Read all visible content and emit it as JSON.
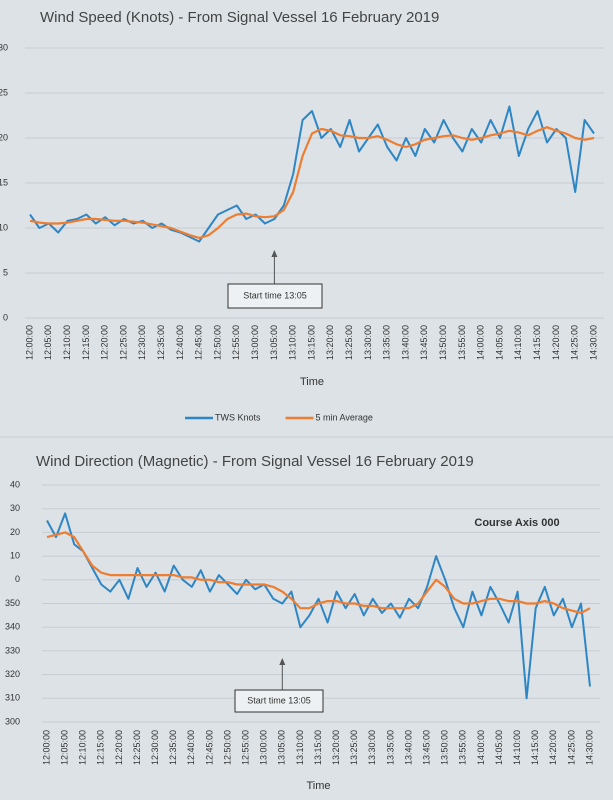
{
  "chart_data": [
    {
      "type": "line",
      "title": "Wind Speed (Knots) - From Signal Vessel 16 February 2019",
      "x_label": "Time",
      "categories": [
        "12:00:00",
        null,
        "12:05:00",
        null,
        "12:10:00",
        null,
        "12:15:00",
        null,
        "12:20:00",
        null,
        "12:25:00",
        null,
        "12:30:00",
        null,
        "12:35:00",
        null,
        "12:40:00",
        null,
        "12:45:00",
        null,
        "12:50:00",
        null,
        "12:55:00",
        null,
        "13:00:00",
        null,
        "13:05:00",
        null,
        "13:10:00",
        null,
        "13:15:00",
        null,
        "13:20:00",
        null,
        "13:25:00",
        null,
        "13:30:00",
        null,
        "13:35:00",
        null,
        "13:40:00",
        null,
        "13:45:00",
        null,
        "13:50:00",
        null,
        "13:55:00",
        null,
        "14:00:00",
        null,
        "14:05:00",
        null,
        "14:10:00",
        null,
        "14:15:00",
        null,
        "14:20:00",
        null,
        "14:25:00",
        null,
        "14:30:00"
      ],
      "series": [
        {
          "name": "TWS Knots",
          "color": "#2f86c4",
          "values": [
            11.5,
            10,
            10.5,
            9.5,
            10.8,
            11,
            11.5,
            10.5,
            11.2,
            10.3,
            11,
            10.5,
            10.8,
            10,
            10.5,
            9.8,
            9.5,
            9,
            8.5,
            10,
            11.5,
            12,
            12.5,
            11,
            11.5,
            10.5,
            11,
            12.5,
            16,
            22,
            23,
            20,
            21,
            19,
            22,
            18.5,
            20,
            21.5,
            19,
            17.5,
            20,
            18,
            21,
            19.5,
            22,
            20,
            18.5,
            21,
            19.5,
            22,
            20,
            23.5,
            18,
            21,
            23,
            19.5,
            21,
            20,
            14,
            22,
            20.5
          ]
        },
        {
          "name": "5 min Average",
          "color": "#ed7d31",
          "values": [
            10.8,
            10.6,
            10.5,
            10.5,
            10.6,
            10.8,
            11,
            11,
            10.9,
            10.8,
            10.8,
            10.7,
            10.6,
            10.4,
            10.2,
            10,
            9.6,
            9.2,
            8.9,
            9.2,
            10,
            11,
            11.5,
            11.6,
            11.3,
            11.2,
            11.3,
            12,
            14,
            18,
            20.5,
            21,
            20.8,
            20.3,
            20.2,
            20,
            20,
            20.2,
            19.8,
            19.3,
            19,
            19.3,
            19.8,
            20,
            20.2,
            20.3,
            20,
            19.8,
            20,
            20.3,
            20.5,
            20.8,
            20.6,
            20.3,
            20.8,
            21.2,
            20.8,
            20.5,
            20,
            19.8,
            20
          ]
        }
      ],
      "ylim": [
        0,
        30
      ],
      "yticks": [
        0,
        5,
        10,
        15,
        20,
        25,
        30
      ],
      "grid": true,
      "legend": "bottom",
      "annotations": [
        "Start time 13:05"
      ]
    },
    {
      "type": "line",
      "title": "Wind Direction (Magnetic) - From Signal Vessel 16 February 2019",
      "x_label": "Time",
      "categories": [
        "12:00:00",
        null,
        "12:05:00",
        null,
        "12:10:00",
        null,
        "12:15:00",
        null,
        "12:20:00",
        null,
        "12:25:00",
        null,
        "12:30:00",
        null,
        "12:35:00",
        null,
        "12:40:00",
        null,
        "12:45:00",
        null,
        "12:50:00",
        null,
        "12:55:00",
        null,
        "13:00:00",
        null,
        "13:05:00",
        null,
        "13:10:00",
        null,
        "13:15:00",
        null,
        "13:20:00",
        null,
        "13:25:00",
        null,
        "13:30:00",
        null,
        "13:35:00",
        null,
        "13:40:00",
        null,
        "13:45:00",
        null,
        "13:50:00",
        null,
        "13:55:00",
        null,
        "14:00:00",
        null,
        "14:05:00",
        null,
        "14:10:00",
        null,
        "14:15:00",
        null,
        "14:20:00",
        null,
        "14:25:00",
        null,
        "14:30:00"
      ],
      "series": [
        {
          "color": "#2f86c4",
          "values": [
            25,
            18,
            28,
            15,
            12,
            5,
            -2,
            -5,
            0,
            -8,
            5,
            -3,
            3,
            -5,
            6,
            0,
            -3,
            4,
            -5,
            2,
            -2,
            -6,
            0,
            -4,
            -2,
            -8,
            -10,
            -5,
            -20,
            -15,
            -8,
            -18,
            -5,
            -12,
            -6,
            -15,
            -8,
            -14,
            -10,
            -16,
            -8,
            -12,
            -3,
            10,
            0,
            -12,
            -20,
            -5,
            -15,
            -3,
            -10,
            -18,
            -5,
            -50,
            -12,
            -3,
            -15,
            -8,
            -20,
            -10,
            -45
          ]
        },
        {
          "color": "#ed7d31",
          "values": [
            18,
            19,
            20,
            18,
            12,
            6,
            3,
            2,
            2,
            2,
            2,
            2,
            2,
            2,
            2,
            1,
            1,
            0,
            0,
            -1,
            -1,
            -2,
            -2,
            -2,
            -2,
            -3,
            -5,
            -8,
            -12,
            -12,
            -10,
            -9,
            -9,
            -10,
            -10,
            -11,
            -11,
            -12,
            -12,
            -12,
            -12,
            -10,
            -5,
            0,
            -3,
            -8,
            -10,
            -10,
            -9,
            -8,
            -8,
            -9,
            -9,
            -10,
            -10,
            -9,
            -10,
            -12,
            -13,
            -14,
            -12
          ]
        }
      ],
      "ylim": [
        -60,
        40
      ],
      "yticks": [
        {
          "value": -60,
          "label": "300"
        },
        {
          "value": -50,
          "label": "310"
        },
        {
          "value": -40,
          "label": "320"
        },
        {
          "value": -30,
          "label": "330"
        },
        {
          "value": -20,
          "label": "340"
        },
        {
          "value": -10,
          "label": "350"
        },
        0,
        10,
        20,
        30,
        40
      ],
      "grid": true,
      "annotations": [
        "Course Axis 000",
        "Start time 13:05"
      ]
    }
  ]
}
